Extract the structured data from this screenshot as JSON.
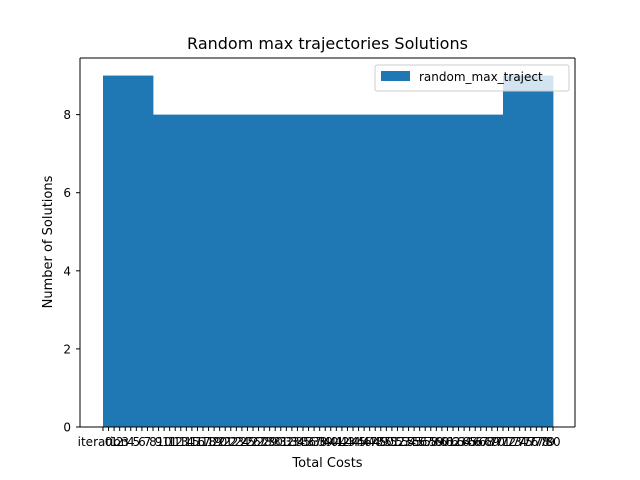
{
  "chart_data": {
    "type": "bar",
    "title": "Random max trajectories Solutions",
    "xlabel": "Total Costs",
    "ylabel": "Number of Solutions",
    "ylim": [
      0,
      9.45
    ],
    "yticks": [
      "0",
      "2",
      "4",
      "6",
      "8"
    ],
    "categories": [
      "iteration",
      "0",
      "1",
      "2",
      "3",
      "4",
      "5",
      "6",
      "7",
      "8",
      "9",
      "10",
      "11",
      "12",
      "13",
      "14",
      "15",
      "16",
      "17",
      "18",
      "19",
      "20",
      "21",
      "22",
      "23",
      "24",
      "25",
      "26",
      "27",
      "28",
      "29",
      "30",
      "31",
      "32",
      "33",
      "34",
      "35",
      "36",
      "37",
      "38",
      "39",
      "40",
      "41",
      "42",
      "43",
      "44",
      "45",
      "46",
      "47",
      "48",
      "49",
      "50",
      "51",
      "52",
      "53",
      "54",
      "55",
      "56",
      "57",
      "58",
      "59",
      "60",
      "61",
      "62",
      "63",
      "64",
      "65",
      "66",
      "67",
      "68",
      "69",
      "70",
      "71",
      "72",
      "73",
      "74",
      "75",
      "76",
      "77",
      "78",
      "79",
      "80"
    ],
    "bins": [
      {
        "start": 0,
        "end": 9,
        "value": 9
      },
      {
        "start": 9,
        "end": 72,
        "value": 8
      },
      {
        "start": 72,
        "end": 81,
        "value": 9
      }
    ],
    "series": [
      {
        "name": "random_max_traject",
        "color": "#1f77b4"
      }
    ],
    "legend": "top-right",
    "grid": false
  }
}
